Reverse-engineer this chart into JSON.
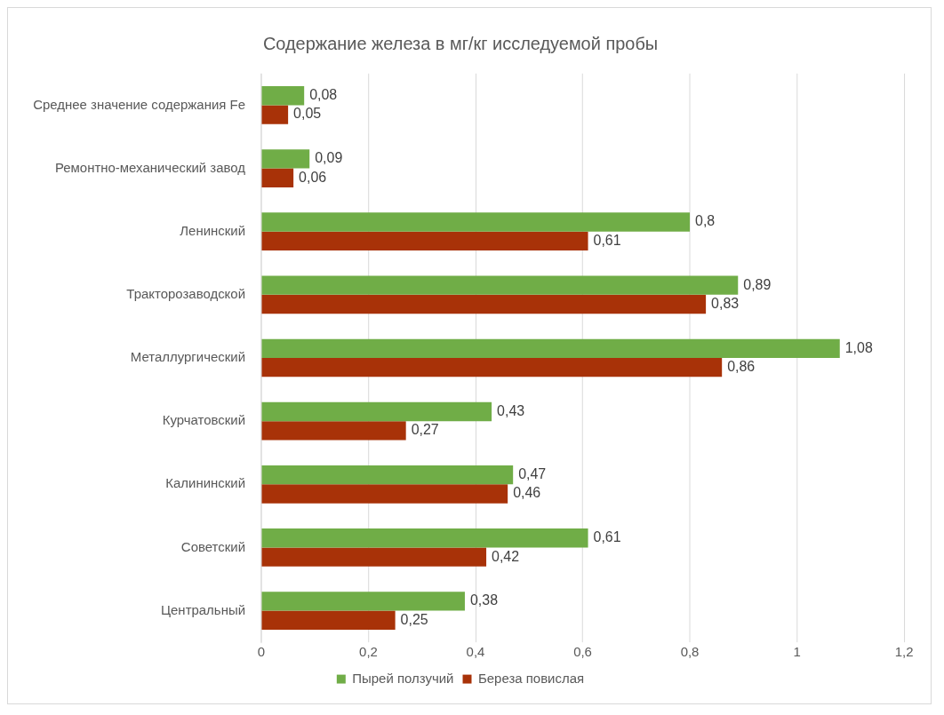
{
  "chart_data": {
    "type": "bar",
    "orientation": "horizontal",
    "title": "Содержание железа в мг/кг исследуемой пробы",
    "categories": [
      "Среднее значение содержания Fe",
      "Ремонтно-механический завод",
      "Ленинский",
      "Тракторозаводской",
      "Металлургический",
      "Курчатовский",
      "Калининский",
      "Советский",
      "Центральный"
    ],
    "series": [
      {
        "name": "Пырей ползучий",
        "color": "#70ad47",
        "values": [
          0.08,
          0.09,
          0.8,
          0.89,
          1.08,
          0.43,
          0.47,
          0.61,
          0.38
        ],
        "value_labels": [
          "0,08",
          "0,09",
          "0,8",
          "0,89",
          "1,08",
          "0,43",
          "0,47",
          "0,61",
          "0,38"
        ]
      },
      {
        "name": "Береза повислая",
        "color": "#a83208",
        "values": [
          0.05,
          0.06,
          0.61,
          0.83,
          0.86,
          0.27,
          0.46,
          0.42,
          0.25
        ],
        "value_labels": [
          "0,05",
          "0,06",
          "0,61",
          "0,83",
          "0,86",
          "0,27",
          "0,46",
          "0,42",
          "0,25"
        ]
      }
    ],
    "xlim": [
      0,
      1.2
    ],
    "xticks": [
      0,
      {
        "value": 0.2,
        "label": "0,2"
      },
      {
        "value": 0.4,
        "label": "0,4"
      },
      {
        "value": 0.6,
        "label": "0,6"
      },
      {
        "value": 0.8,
        "label": "0,8"
      },
      1,
      {
        "value": 1.2,
        "label": "1,2"
      }
    ],
    "grid": "x",
    "legend": "bottom"
  }
}
